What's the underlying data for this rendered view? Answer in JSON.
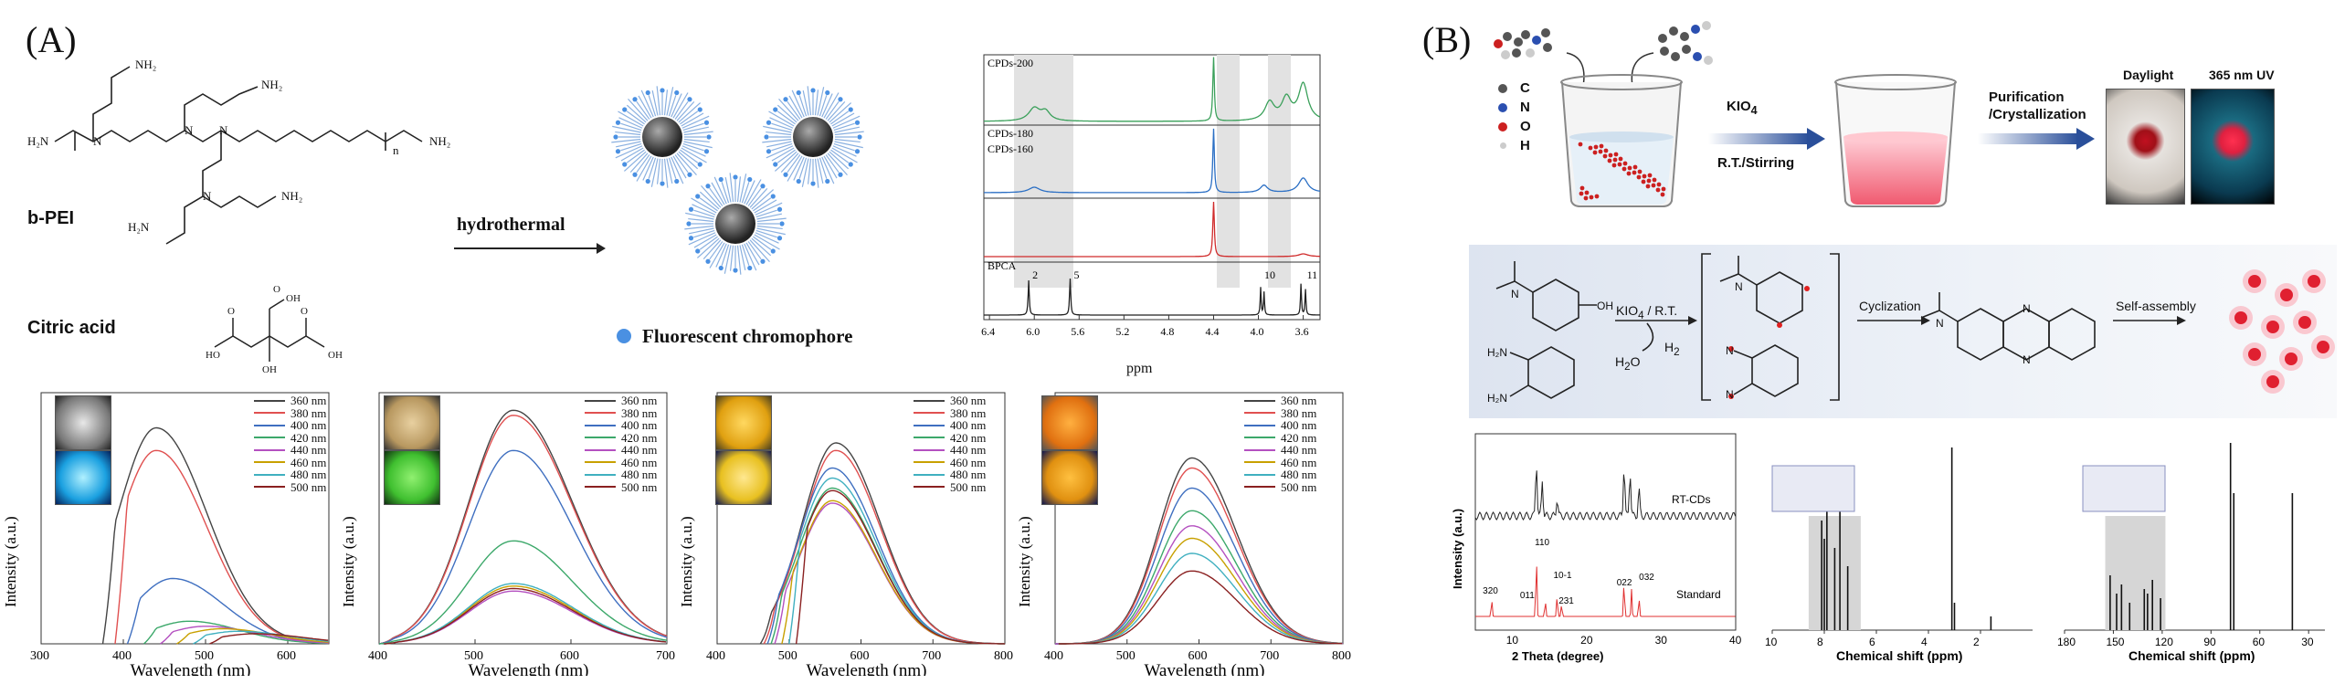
{
  "panel_a": {
    "letter": "(A)",
    "bpei_label": "b-PEI",
    "citric_label": "Citric acid",
    "arrow_label": "hydrothermal",
    "chromophore_label": "Fluorescent chromophore",
    "colors": {
      "halo": "#5b8fd6",
      "core": "#3a3a3a",
      "dot": "#4a90e2"
    }
  },
  "nmr": {
    "traces": [
      "CPDs-200",
      "CPDs-180",
      "CPDs-160",
      "BPCA"
    ],
    "peak_labels": [
      "2",
      "5",
      "10",
      "11"
    ],
    "xticks": [
      "6.4",
      "6.0",
      "5.6",
      "5.2",
      "4.8",
      "4.4",
      "4.0",
      "3.6"
    ],
    "xlabel": "ppm",
    "colors": [
      "#3aa05a",
      "#2b6fc4",
      "#d02b2b",
      "#222222"
    ]
  },
  "legend_wavelengths": [
    "360 nm",
    "380 nm",
    "400 nm",
    "420 nm",
    "440 nm",
    "460 nm",
    "480 nm",
    "500 nm"
  ],
  "legend_colors": [
    "#444444",
    "#e05050",
    "#3f6fc0",
    "#3ca86a",
    "#b450c0",
    "#c8a000",
    "#40b0c0",
    "#8a2020"
  ],
  "chart_data": [
    {
      "type": "line",
      "xlabel": "Wavelength (nm)",
      "ylabel": "Intensity (a.u.)",
      "xlim": [
        300,
        650
      ],
      "xticks": [
        "300",
        "400",
        "500",
        "600"
      ],
      "series": [
        {
          "name": "360 nm",
          "peak": 440,
          "height": 0.86,
          "start": 375
        },
        {
          "name": "380 nm",
          "peak": 440,
          "height": 0.77,
          "start": 390
        },
        {
          "name": "400 nm",
          "peak": 460,
          "height": 0.26,
          "start": 405
        },
        {
          "name": "420 nm",
          "peak": 480,
          "height": 0.09,
          "start": 425
        },
        {
          "name": "440 nm",
          "peak": 500,
          "height": 0.07,
          "start": 445
        },
        {
          "name": "460 nm",
          "peak": 520,
          "height": 0.06,
          "start": 465
        },
        {
          "name": "480 nm",
          "peak": 540,
          "height": 0.05,
          "start": 485
        },
        {
          "name": "500 nm",
          "peak": 560,
          "height": 0.04,
          "start": 505
        }
      ]
    },
    {
      "type": "line",
      "xlabel": "Wavelength (nm)",
      "ylabel": "Intensity (a.u.)",
      "xlim": [
        400,
        700
      ],
      "xticks": [
        "400",
        "500",
        "600",
        "700"
      ],
      "series": [
        {
          "name": "360 nm",
          "peak": 540,
          "height": 0.93,
          "start": 400
        },
        {
          "name": "380 nm",
          "peak": 540,
          "height": 0.91,
          "start": 400
        },
        {
          "name": "400 nm",
          "peak": 540,
          "height": 0.77,
          "start": 400
        },
        {
          "name": "420 nm",
          "peak": 540,
          "height": 0.41,
          "start": 400
        },
        {
          "name": "440 nm",
          "peak": 540,
          "height": 0.21,
          "start": 405
        },
        {
          "name": "460 nm",
          "peak": 540,
          "height": 0.23,
          "start": 405
        },
        {
          "name": "480 nm",
          "peak": 540,
          "height": 0.24,
          "start": 405
        },
        {
          "name": "500 nm",
          "peak": 540,
          "height": 0.22,
          "start": 405
        }
      ]
    },
    {
      "type": "line",
      "xlabel": "Wavelength (nm)",
      "ylabel": "Intensity (a.u.)",
      "xlim": [
        400,
        800
      ],
      "xticks": [
        "400",
        "500",
        "600",
        "700",
        "800"
      ],
      "series": [
        {
          "name": "360 nm",
          "peak": 565,
          "height": 0.8,
          "start": 460
        },
        {
          "name": "380 nm",
          "peak": 565,
          "height": 0.77,
          "start": 465
        },
        {
          "name": "400 nm",
          "peak": 560,
          "height": 0.7,
          "start": 470
        },
        {
          "name": "420 nm",
          "peak": 560,
          "height": 0.62,
          "start": 475
        },
        {
          "name": "440 nm",
          "peak": 560,
          "height": 0.56,
          "start": 480
        },
        {
          "name": "460 nm",
          "peak": 560,
          "height": 0.57,
          "start": 490
        },
        {
          "name": "480 nm",
          "peak": 560,
          "height": 0.66,
          "start": 500
        },
        {
          "name": "500 nm",
          "peak": 560,
          "height": 0.61,
          "start": 510
        }
      ]
    },
    {
      "type": "line",
      "xlabel": "Wavelength (nm)",
      "ylabel": "Intensity (a.u.)",
      "xlim": [
        400,
        800
      ],
      "xticks": [
        "400",
        "500",
        "600",
        "700",
        "800"
      ],
      "series": [
        {
          "name": "360 nm",
          "peak": 590,
          "height": 0.74,
          "start": 400
        },
        {
          "name": "380 nm",
          "peak": 590,
          "height": 0.7,
          "start": 400
        },
        {
          "name": "400 nm",
          "peak": 590,
          "height": 0.62,
          "start": 400
        },
        {
          "name": "420 nm",
          "peak": 590,
          "height": 0.53,
          "start": 400
        },
        {
          "name": "440 nm",
          "peak": 590,
          "height": 0.47,
          "start": 400
        },
        {
          "name": "460 nm",
          "peak": 590,
          "height": 0.42,
          "start": 405
        },
        {
          "name": "480 nm",
          "peak": 590,
          "height": 0.36,
          "start": 405
        },
        {
          "name": "500 nm",
          "peak": 590,
          "height": 0.29,
          "start": 405
        }
      ]
    },
    {
      "type": "line",
      "xlabel": "2 Theta (degree)",
      "ylabel": "Intensity (a.u.)",
      "xlim": [
        5,
        40
      ],
      "xticks": [
        "10",
        "20",
        "30",
        "40"
      ],
      "series": [
        {
          "name": "RT-CDs"
        },
        {
          "name": "Standard"
        }
      ],
      "annotations": [
        "110",
        "320",
        "011",
        "10-1",
        "231",
        "022",
        "032"
      ]
    },
    {
      "type": "line",
      "xlabel": "Chemical shift (ppm)",
      "ylabel": "",
      "xlim": [
        10,
        0
      ],
      "xticks": [
        "10",
        "8",
        "6",
        "4",
        "2"
      ]
    },
    {
      "type": "line",
      "xlabel": "Chemical shift (ppm)",
      "ylabel": "",
      "xlim": [
        180,
        20
      ],
      "xticks": [
        "180",
        "150",
        "120",
        "90",
        "60",
        "30"
      ]
    }
  ],
  "panel_b": {
    "letter": "(B)",
    "atoms": [
      "C",
      "N",
      "O",
      "H"
    ],
    "atom_colors": [
      "#555555",
      "#2b4fb0",
      "#cc2020",
      "#cccccc"
    ],
    "reagent": "KIO",
    "reagent_sub": "4",
    "conditions": "R.T./Stirring",
    "purification": "Purification\n/Crystallization",
    "daylight": "Daylight",
    "uv": "365 nm UV",
    "scheme_reagent": "KIO",
    "scheme_reagent_sub": "4",
    "scheme_reagent_rest": " / R.T.",
    "h2o": "H",
    "h2o_sub": "2",
    "h2o_rest": "O",
    "h2": "H",
    "h2_sub": "2",
    "cyclization": "Cyclization",
    "self_assembly": "Self-assembly"
  }
}
